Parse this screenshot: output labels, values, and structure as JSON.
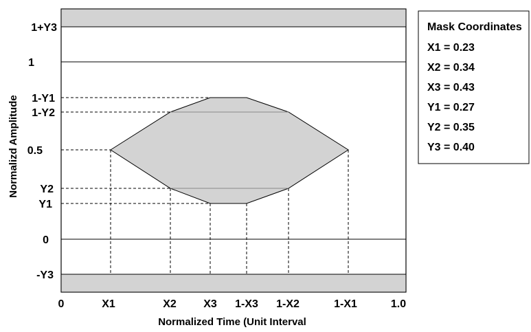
{
  "colors": {
    "fill": "#d3d3d3",
    "line": "#000000",
    "background": "#ffffff"
  },
  "chart_data": {
    "type": "eye-mask-diagram",
    "xlabel": "Normalized Time (Unit Interval",
    "ylabel": "Normalizd Amplitude",
    "x_ticks": [
      "0",
      "X1",
      "X2",
      "X3",
      "1-X3",
      "1-X2",
      "1-X1",
      "1.0"
    ],
    "y_ticks": [
      "1+Y3",
      "1",
      "1-Y1",
      "1-Y2",
      "0.5",
      "Y2",
      "Y1",
      "0",
      "-Y3"
    ],
    "mask": {
      "X1": 0.23,
      "X2": 0.34,
      "X3": 0.43,
      "Y1": 0.27,
      "Y2": 0.35,
      "Y3": 0.4
    }
  },
  "legend": {
    "title": "Mask Coordinates",
    "items": [
      "X1 = 0.23",
      "X2 = 0.34",
      "X3 = 0.43",
      "Y1 = 0.27",
      "Y2 = 0.35",
      "Y3 = 0.40"
    ]
  }
}
